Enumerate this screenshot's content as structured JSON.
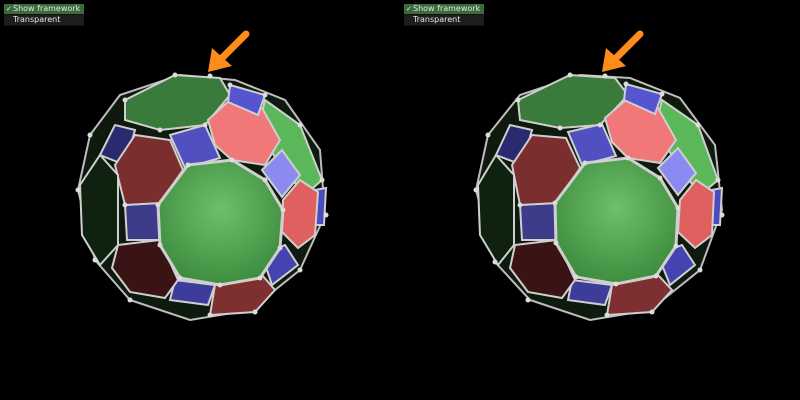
{
  "menu": {
    "items": [
      {
        "label": "Show framework",
        "checked": true,
        "mark": "✓"
      },
      {
        "label": "Transparent",
        "checked": false,
        "mark": ""
      }
    ]
  },
  "colors": {
    "background": "#000000",
    "green_face": "#5aa95a",
    "red_face": "#7a2e2e",
    "blue_face": "#3c3c9a",
    "arrow": "#ff8c1a",
    "edge": "#cfcfcf"
  },
  "icons": {
    "pointer": "arrow-icon",
    "check": "checkmark-icon"
  }
}
